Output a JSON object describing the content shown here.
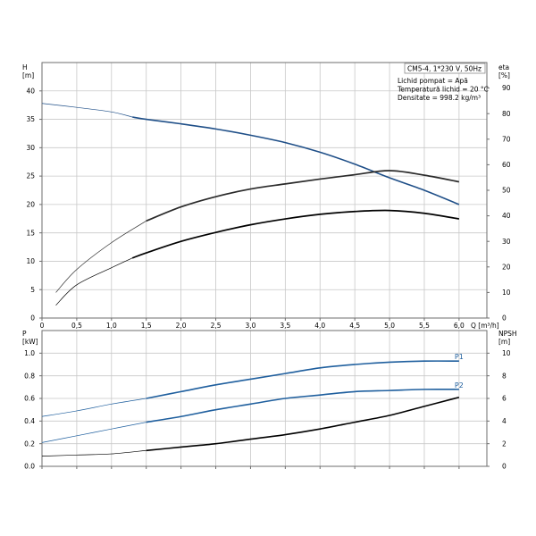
{
  "chart_data": [
    {
      "type": "line",
      "title": "",
      "xlabel": "Q [m³/h]",
      "ylabel": "H [m]",
      "ylabel_right": "eta [%]",
      "xlim": [
        0,
        6.4
      ],
      "ylim": [
        0,
        45
      ],
      "ylim_right": [
        0,
        100
      ],
      "grid": true,
      "x_ticks": [
        "0",
        "0,5",
        "1,0",
        "1,5",
        "2,0",
        "2,5",
        "3,0",
        "3,5",
        "4,0",
        "4,5",
        "5,0",
        "5,5",
        "6,0"
      ],
      "y_ticks": [
        "0",
        "5",
        "10",
        "15",
        "20",
        "25",
        "30",
        "35",
        "40"
      ],
      "y_ticks_right": [
        "0",
        "10",
        "20",
        "30",
        "40",
        "50",
        "60",
        "70",
        "80",
        "90"
      ],
      "axis_labels": {
        "left_top": "H",
        "left_unit": "[m]",
        "right_top": "eta",
        "right_unit": "[%]",
        "x": "Q [m³/h]"
      },
      "model_box": "CM5-4, 1*230 V, 50Hz",
      "info_lines": [
        "Lichid pompat = Apă",
        "Temperatură lichid = 20 °C",
        "Densitate = 998.2 kg/m³"
      ],
      "series": [
        {
          "axis": "left",
          "color": "#1f4f88",
          "x": [
            0,
            0.5,
            1.0,
            1.3,
            1.5,
            2.0,
            2.5,
            3.0,
            3.5,
            4.0,
            4.5,
            5.0,
            5.5,
            6.0
          ],
          "y": [
            37.8,
            37.1,
            36.3,
            35.4,
            35.0,
            34.2,
            33.3,
            32.2,
            30.9,
            29.2,
            27.1,
            24.7,
            22.5,
            20.0
          ]
        },
        {
          "axis": "right",
          "color": "#2a2a2a",
          "x": [
            0.2,
            0.5,
            1.0,
            1.5,
            2.0,
            2.5,
            3.0,
            3.5,
            4.0,
            4.5,
            5.0,
            5.5,
            6.0
          ],
          "y": [
            10,
            19,
            29.5,
            38,
            43.5,
            47.5,
            50.5,
            52.5,
            54.4,
            56.1,
            57.7,
            55.9,
            53.3
          ]
        },
        {
          "axis": "right",
          "color": "#000000",
          "x": [
            0.2,
            0.5,
            1.0,
            1.3,
            1.5,
            2.0,
            2.5,
            3.0,
            3.5,
            4.0,
            4.5,
            5.0,
            5.5,
            6.0
          ],
          "y": [
            5,
            13,
            19.7,
            23.5,
            25.5,
            30,
            33.5,
            36.5,
            38.8,
            40.6,
            41.7,
            42.1,
            41.0,
            38.8
          ]
        }
      ]
    },
    {
      "type": "line",
      "title": "",
      "xlabel": "",
      "ylabel": "P [kW]",
      "ylabel_right": "NPSH [m]",
      "xlim": [
        0,
        6.4
      ],
      "ylim": [
        0,
        1.2
      ],
      "ylim_right": [
        0,
        12
      ],
      "grid": true,
      "y_ticks": [
        "0.0",
        "0.2",
        "0.4",
        "0.6",
        "0.8",
        "1.0"
      ],
      "y_ticks_right": [
        "0",
        "2",
        "4",
        "6",
        "8",
        "10"
      ],
      "axis_labels": {
        "left_top": "P",
        "left_unit": "[kW]",
        "right_top": "NPSH",
        "right_unit": "[m]"
      },
      "series": [
        {
          "name": "P1",
          "axis": "left",
          "color": "#1f5f9e",
          "x": [
            0,
            0.5,
            1.0,
            1.5,
            2.0,
            2.5,
            3.0,
            3.5,
            4.0,
            4.5,
            5.0,
            5.5,
            6.0
          ],
          "y": [
            0.44,
            0.49,
            0.55,
            0.6,
            0.66,
            0.72,
            0.77,
            0.82,
            0.87,
            0.9,
            0.92,
            0.93,
            0.93
          ]
        },
        {
          "name": "P2",
          "axis": "left",
          "color": "#1f5f9e",
          "x": [
            0,
            0.5,
            1.0,
            1.5,
            2.0,
            2.5,
            3.0,
            3.5,
            4.0,
            4.5,
            5.0,
            5.5,
            6.0
          ],
          "y": [
            0.21,
            0.27,
            0.33,
            0.39,
            0.44,
            0.5,
            0.55,
            0.6,
            0.63,
            0.66,
            0.67,
            0.68,
            0.68
          ]
        },
        {
          "axis": "right",
          "color": "#000000",
          "x": [
            0,
            0.5,
            1.0,
            1.5,
            2.0,
            2.5,
            3.0,
            3.5,
            4.0,
            4.5,
            5.0,
            5.5,
            6.0
          ],
          "y": [
            0.9,
            1.0,
            1.1,
            1.4,
            1.7,
            2.0,
            2.4,
            2.8,
            3.3,
            3.9,
            4.5,
            5.3,
            6.1
          ]
        }
      ]
    }
  ]
}
